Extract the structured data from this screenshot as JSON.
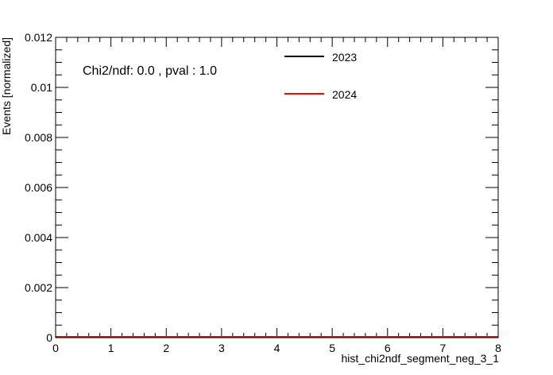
{
  "chart_data": {
    "type": "line",
    "title": "",
    "xlabel": "hist_chi2ndf_segment_neg_3_1",
    "ylabel": "Events [normalized]",
    "xlim": [
      0,
      8
    ],
    "ylim": [
      0,
      0.012
    ],
    "x_ticks": [
      0,
      1,
      2,
      3,
      4,
      5,
      6,
      7,
      8
    ],
    "x_tick_labels": [
      "0",
      "1",
      "2",
      "3",
      "4",
      "5",
      "6",
      "7",
      "8"
    ],
    "y_ticks": [
      0,
      0.002,
      0.004,
      0.006,
      0.008,
      0.01,
      0.012
    ],
    "y_tick_labels": [
      "0",
      "0.002",
      "0.004",
      "0.006",
      "0.008",
      "0.01",
      "0.012"
    ],
    "annotation": "Chi2/ndf: 0.0 , pval : 1.0",
    "legend_position": "top-right",
    "grid": false,
    "series": [
      {
        "name": "2023",
        "color": "#000000",
        "x": [
          0,
          8
        ],
        "values": [
          0,
          0
        ]
      },
      {
        "name": "2024",
        "color": "#ff0000",
        "x": [
          0,
          8
        ],
        "values": [
          0,
          0
        ]
      }
    ]
  }
}
